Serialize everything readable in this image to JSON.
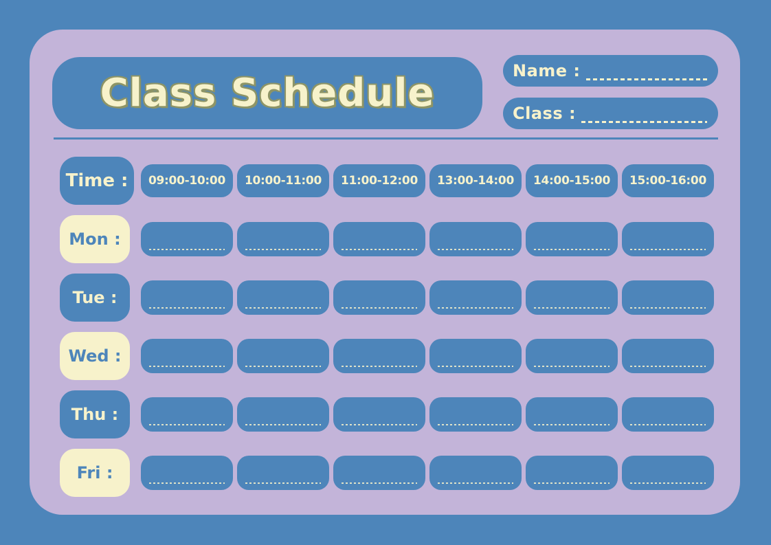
{
  "title": "Class Schedule",
  "header_fields": {
    "name": {
      "label": "Name :",
      "value": ""
    },
    "class": {
      "label": "Class :",
      "value": ""
    }
  },
  "schedule": {
    "time_header": {
      "label": "Time :",
      "slots": [
        "09:00-10:00",
        "10:00-11:00",
        "11:00-12:00",
        "13:00-14:00",
        "14:00-15:00",
        "15:00-16:00"
      ]
    },
    "days": [
      {
        "label": "Mon :",
        "entries": [
          "",
          "",
          "",
          "",
          "",
          ""
        ]
      },
      {
        "label": "Tue :",
        "entries": [
          "",
          "",
          "",
          "",
          "",
          ""
        ]
      },
      {
        "label": "Wed :",
        "entries": [
          "",
          "",
          "",
          "",
          "",
          ""
        ]
      },
      {
        "label": "Thu :",
        "entries": [
          "",
          "",
          "",
          "",
          "",
          ""
        ]
      },
      {
        "label": "Fri :",
        "entries": [
          "",
          "",
          "",
          "",
          "",
          ""
        ]
      }
    ]
  },
  "colors": {
    "blue": "#4D85BA",
    "purple": "#C3B4D9",
    "cream": "#F7F2CB",
    "title-outline": "#8D9466"
  }
}
